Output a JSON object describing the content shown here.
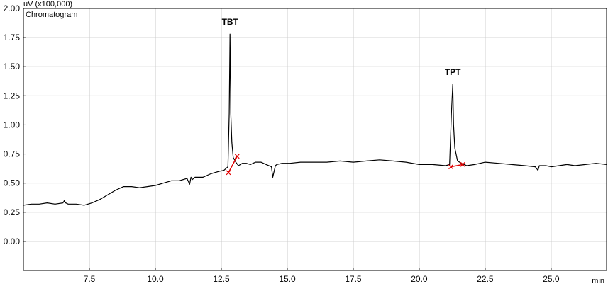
{
  "chart_data": {
    "type": "line",
    "title": "Chromatogram",
    "ylabel": "uV  (x100,000)",
    "xunit": "min",
    "xlim": [
      5.0,
      27.1
    ],
    "ylim": [
      -0.25,
      2.0
    ],
    "xticks": [
      7.5,
      10.0,
      12.5,
      15.0,
      17.5,
      20.0,
      22.5,
      25.0
    ],
    "yticks": [
      0.0,
      0.25,
      0.5,
      0.75,
      1.0,
      1.25,
      1.5,
      1.75,
      2.0
    ],
    "grid": true,
    "colors": {
      "trace": "#000000",
      "integration": "#e00000",
      "grid": "#c8c8c8"
    },
    "series": [
      {
        "x": [
          5.0,
          5.3,
          5.6,
          5.9,
          6.2,
          6.5,
          6.55,
          6.6,
          6.7,
          7.0,
          7.3,
          7.6,
          7.9,
          8.2,
          8.5,
          8.8,
          9.1,
          9.4,
          9.7,
          10.0,
          10.3,
          10.6,
          10.9,
          11.2,
          11.3,
          11.35,
          11.4,
          11.5,
          11.8,
          12.1,
          12.4,
          12.6,
          12.75,
          12.8,
          12.83,
          12.86,
          12.9,
          12.95,
          13.05,
          13.15,
          13.3,
          13.45,
          13.6,
          13.8,
          14.0,
          14.2,
          14.4,
          14.45,
          14.5,
          14.55,
          14.6,
          14.8,
          15.1,
          15.5,
          16.0,
          16.5,
          17.0,
          17.5,
          18.0,
          18.5,
          19.0,
          19.5,
          20.0,
          20.5,
          21.0,
          21.15,
          21.22,
          21.27,
          21.3,
          21.35,
          21.45,
          21.6,
          21.8,
          22.1,
          22.5,
          23.0,
          23.5,
          24.0,
          24.4,
          24.5,
          24.55,
          24.8,
          25.0,
          25.3,
          25.6,
          25.9,
          26.3,
          26.7,
          27.1
        ],
        "values": [
          0.31,
          0.32,
          0.32,
          0.33,
          0.32,
          0.33,
          0.35,
          0.33,
          0.32,
          0.32,
          0.31,
          0.33,
          0.36,
          0.4,
          0.44,
          0.47,
          0.47,
          0.46,
          0.47,
          0.48,
          0.5,
          0.52,
          0.52,
          0.54,
          0.49,
          0.55,
          0.53,
          0.55,
          0.55,
          0.58,
          0.6,
          0.61,
          0.64,
          1.1,
          1.78,
          1.1,
          0.85,
          0.72,
          0.68,
          0.65,
          0.67,
          0.67,
          0.66,
          0.68,
          0.68,
          0.66,
          0.64,
          0.55,
          0.6,
          0.65,
          0.66,
          0.67,
          0.67,
          0.68,
          0.68,
          0.68,
          0.69,
          0.68,
          0.69,
          0.7,
          0.69,
          0.68,
          0.66,
          0.66,
          0.65,
          0.66,
          1.1,
          1.35,
          1.0,
          0.8,
          0.69,
          0.67,
          0.65,
          0.66,
          0.68,
          0.67,
          0.66,
          0.65,
          0.64,
          0.61,
          0.65,
          0.65,
          0.64,
          0.65,
          0.66,
          0.65,
          0.66,
          0.67,
          0.66
        ]
      }
    ],
    "peaks": [
      {
        "label": "TBT",
        "x": 12.83,
        "y": 1.78,
        "start": [
          12.77,
          0.59
        ],
        "end": [
          13.1,
          0.73
        ]
      },
      {
        "label": "TPT",
        "x": 21.27,
        "y": 1.35,
        "start": [
          21.2,
          0.64
        ],
        "end": [
          21.65,
          0.66
        ]
      }
    ]
  }
}
